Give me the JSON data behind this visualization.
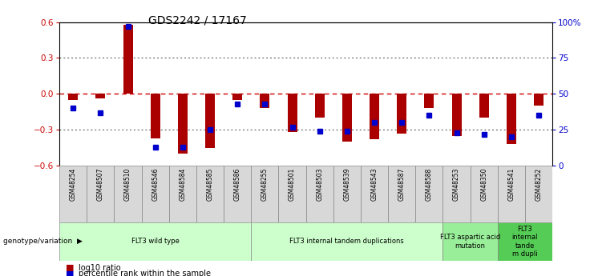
{
  "title": "GDS2242 / 17167",
  "samples": [
    "GSM48254",
    "GSM48507",
    "GSM48510",
    "GSM48546",
    "GSM48584",
    "GSM48585",
    "GSM48586",
    "GSM48255",
    "GSM48501",
    "GSM48503",
    "GSM48539",
    "GSM48543",
    "GSM48587",
    "GSM48588",
    "GSM48253",
    "GSM48350",
    "GSM48541",
    "GSM48252"
  ],
  "log10_ratio": [
    -0.05,
    -0.04,
    0.58,
    -0.37,
    -0.5,
    -0.45,
    -0.05,
    -0.12,
    -0.32,
    -0.2,
    -0.4,
    -0.38,
    -0.33,
    -0.12,
    -0.35,
    -0.2,
    -0.42,
    -0.1
  ],
  "percentile_rank": [
    40,
    37,
    97,
    13,
    13,
    25,
    43,
    43,
    27,
    24,
    24,
    30,
    30,
    35,
    23,
    22,
    20,
    35
  ],
  "groups": [
    {
      "label": "FLT3 wild type",
      "start": 0,
      "end": 7,
      "color": "#ccffcc"
    },
    {
      "label": "FLT3 internal tandem duplications",
      "start": 7,
      "end": 14,
      "color": "#ccffcc"
    },
    {
      "label": "FLT3 aspartic acid\nmutation",
      "start": 14,
      "end": 16,
      "color": "#99ee99"
    },
    {
      "label": "FLT3\ninternal\ntande\nm dupli",
      "start": 16,
      "end": 18,
      "color": "#55cc55"
    }
  ],
  "bar_color": "#aa0000",
  "dot_color": "#0000cc",
  "zero_line_color": "#cc0000",
  "grid_color": "#444444",
  "ylim": [
    -0.6,
    0.6
  ],
  "y2lim": [
    0,
    100
  ],
  "yticks": [
    -0.6,
    -0.3,
    0.0,
    0.3,
    0.6
  ],
  "y2ticks": [
    0,
    25,
    50,
    75,
    100
  ],
  "y2ticklabels": [
    "0",
    "25",
    "50",
    "75",
    "100%"
  ],
  "bg_color": "#ffffff",
  "label_color_left": "#cc0000",
  "label_color_right": "#0000cc"
}
